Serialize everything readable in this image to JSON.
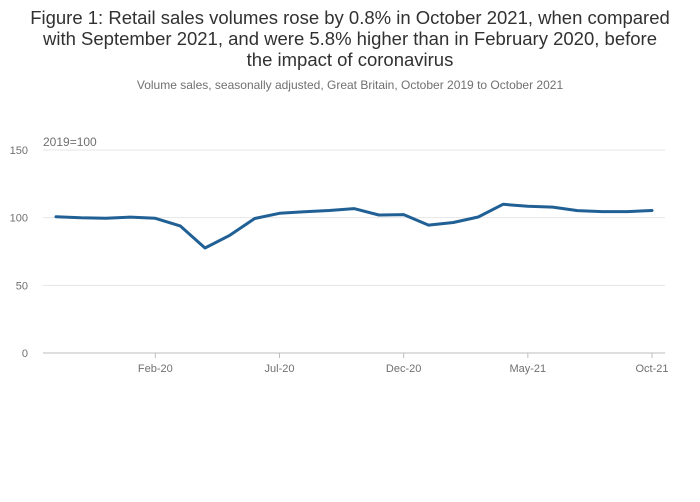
{
  "title": "Figure 1: Retail sales volumes rose by 0.8% in October 2021, when compared with September 2021, and were 5.8% higher than in February 2020, before the impact of coronavirus",
  "subtitle": "Volume sales, seasonally adjusted, Great Britain, October 2019 to October 2021",
  "colors": {
    "series": "#206095",
    "grid": "#e6e6e6",
    "axis": "#bebebe",
    "text": "#707071"
  },
  "chart_data": {
    "type": "line",
    "unit_label": "2019=100",
    "x": [
      "Oct-19",
      "Nov-19",
      "Dec-19",
      "Jan-20",
      "Feb-20",
      "Mar-20",
      "Apr-20",
      "May-20",
      "Jun-20",
      "Jul-20",
      "Aug-20",
      "Sep-20",
      "Oct-20",
      "Nov-20",
      "Dec-20",
      "Jan-21",
      "Feb-21",
      "Mar-21",
      "Apr-21",
      "May-21",
      "Jun-21",
      "Jul-21",
      "Aug-21",
      "Sep-21",
      "Oct-21"
    ],
    "series": [
      {
        "values": [
          100.7,
          99.9,
          99.6,
          100.4,
          99.5,
          93.9,
          77.6,
          87.0,
          99.4,
          103.2,
          104.3,
          105.3,
          106.7,
          102.0,
          102.3,
          94.5,
          96.4,
          100.5,
          109.9,
          108.4,
          107.8,
          105.2,
          104.5,
          104.5,
          105.3
        ]
      }
    ],
    "x_tick_labels": [
      "Feb-20",
      "Jul-20",
      "Dec-20",
      "May-21",
      "Oct-21"
    ],
    "y_ticks": [
      0,
      50,
      100,
      150
    ],
    "ylim": [
      0,
      150
    ],
    "grid": true
  }
}
